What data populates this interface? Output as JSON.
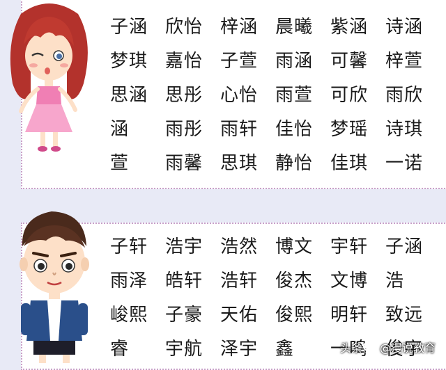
{
  "girls": {
    "rows": [
      [
        "子涵",
        "欣怡",
        "梓涵",
        "晨曦",
        "紫涵",
        "诗涵"
      ],
      [
        "梦琪",
        "嘉怡",
        "子萱",
        "雨涵",
        "可馨",
        "梓萱"
      ],
      [
        "思涵",
        "思彤",
        "心怡",
        "雨萱",
        "可欣",
        "雨欣"
      ],
      [
        "涵",
        "雨彤",
        "雨轩",
        "佳怡",
        "梦瑶",
        "诗琪"
      ],
      [
        "萱",
        "雨馨",
        "思琪",
        "静怡",
        "佳琪",
        "一诺"
      ]
    ]
  },
  "boys": {
    "rows": [
      [
        "子轩",
        "浩宇",
        "浩然",
        "博文",
        "宇轩",
        "子涵"
      ],
      [
        "雨泽",
        "皓轩",
        "浩轩",
        "俊杰",
        "文博",
        "浩"
      ],
      [
        "峻熙",
        "子豪",
        "天佑",
        "俊熙",
        "明轩",
        "致远"
      ],
      [
        "睿",
        "宇航",
        "泽宇",
        "鑫",
        "一鸣",
        "俊宇"
      ]
    ]
  },
  "watermark": {
    "prefix": "头条",
    "handle": "@漫说教育"
  },
  "colors": {
    "background": "#e8eaf6",
    "panel": "#ffffff",
    "border": "#c8a0c8",
    "text": "#1a1a1a"
  }
}
